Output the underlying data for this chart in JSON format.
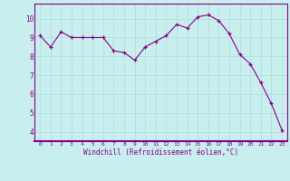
{
  "x": [
    0,
    1,
    2,
    3,
    4,
    5,
    6,
    7,
    8,
    9,
    10,
    11,
    12,
    13,
    14,
    15,
    16,
    17,
    18,
    19,
    20,
    21,
    22,
    23
  ],
  "y": [
    9.1,
    8.5,
    9.3,
    9.0,
    9.0,
    9.0,
    9.0,
    8.3,
    8.2,
    7.8,
    8.5,
    8.8,
    9.1,
    9.7,
    9.5,
    10.1,
    10.2,
    9.9,
    9.2,
    8.1,
    7.6,
    6.6,
    5.5,
    4.1
  ],
  "line_color": "#880088",
  "marker_color": "#880088",
  "bg_color": "#c8eeee",
  "grid_color": "#aadddd",
  "axis_label_color": "#880088",
  "tick_color": "#880088",
  "xlabel": "Windchill (Refroidissement éolien,°C)",
  "ylim": [
    3.5,
    10.8
  ],
  "xlim": [
    -0.5,
    23.5
  ],
  "yticks": [
    4,
    5,
    6,
    7,
    8,
    9,
    10
  ],
  "xticks": [
    0,
    1,
    2,
    3,
    4,
    5,
    6,
    7,
    8,
    9,
    10,
    11,
    12,
    13,
    14,
    15,
    16,
    17,
    18,
    19,
    20,
    21,
    22,
    23
  ],
  "grid_major_color": "#aadddd",
  "spine_color": "#880088",
  "spine_bottom_color": "#880088"
}
